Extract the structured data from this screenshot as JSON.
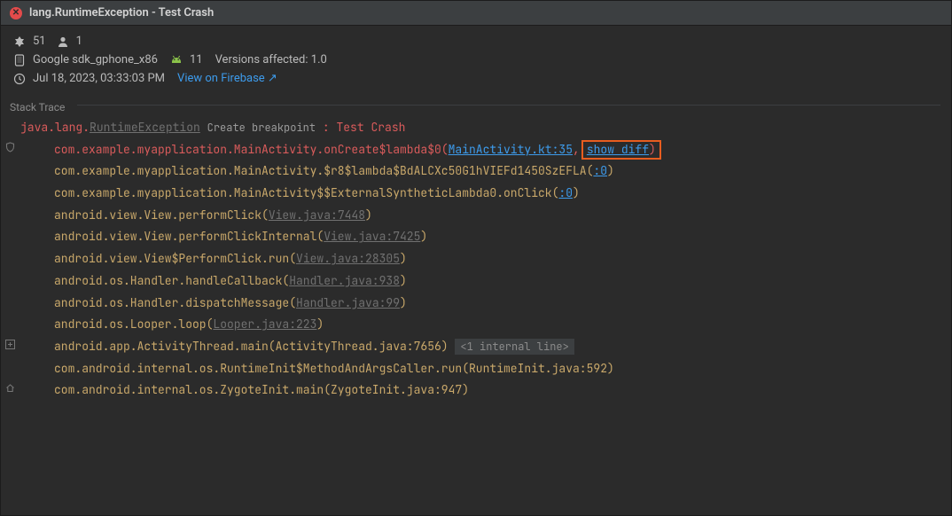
{
  "header": {
    "title": "lang.RuntimeException - Test Crash"
  },
  "meta": {
    "crash_count": "51",
    "user_count": "1",
    "device": "Google sdk_gphone_x86",
    "api_level": "11",
    "versions_label": "Versions affected: 1.0",
    "timestamp": "Jul 18, 2023, 03:33:03 PM",
    "firebase_link": "View on Firebase ↗"
  },
  "section_label": "Stack Trace",
  "trace": {
    "ex_prefix": "java.lang.",
    "ex_name": "RuntimeException",
    "breakpoint_label": "Create breakpoint",
    "ex_sep": " : ",
    "ex_msg": "Test Crash",
    "lines": [
      {
        "pre": "com.example.myapplication.MainActivity.onCreate$lambda$0(",
        "link": "MainActivity.kt:35",
        "post": ",",
        "extra_link": "show diff",
        "close": ")",
        "red": true,
        "gutter": "shield"
      },
      {
        "pre": "com.example.myapplication.MainActivity.$r8$lambda$BdALCXc50G1hVIEFd1450SzEFLA(",
        "link": ":0",
        "close": ")"
      },
      {
        "pre": "com.example.myapplication.MainActivity$$ExternalSyntheticLambda0.onClick(",
        "link": ":0",
        "close": ")"
      },
      {
        "pre": "android.view.View.performClick(",
        "graylink": "View.java:7448",
        "close": ")"
      },
      {
        "pre": "android.view.View.performClickInternal(",
        "graylink": "View.java:7425",
        "close": ")"
      },
      {
        "pre": "android.view.View$PerformClick.run(",
        "graylink": "View.java:28305",
        "close": ")"
      },
      {
        "pre": "android.os.Handler.handleCallback(",
        "graylink": "Handler.java:938",
        "close": ")"
      },
      {
        "pre": "android.os.Handler.dispatchMessage(",
        "graylink": "Handler.java:99",
        "close": ")"
      },
      {
        "pre": "android.os.Looper.loop(",
        "graylink": "Looper.java:223",
        "close": ")"
      },
      {
        "pre": "android.app.ActivityThread.main(ActivityThread.java:7656) ",
        "chip": "<1 internal line>",
        "gutter": "plus"
      },
      {
        "pre": "com.android.internal.os.RuntimeInit$MethodAndArgsCaller.run(RuntimeInit.java:592)"
      },
      {
        "pre": "com.android.internal.os.ZygoteInit.main(ZygoteInit.java:947)",
        "gutter": "home"
      }
    ]
  },
  "colors": {
    "bg": "#2b2b2b",
    "header_bg": "#3c3f41",
    "error": "#e34b4b",
    "red": "#d95b5b",
    "yellow": "#c9a86a",
    "gray": "#707070",
    "link": "#3d9beb",
    "highlight": "#e85d1f"
  }
}
